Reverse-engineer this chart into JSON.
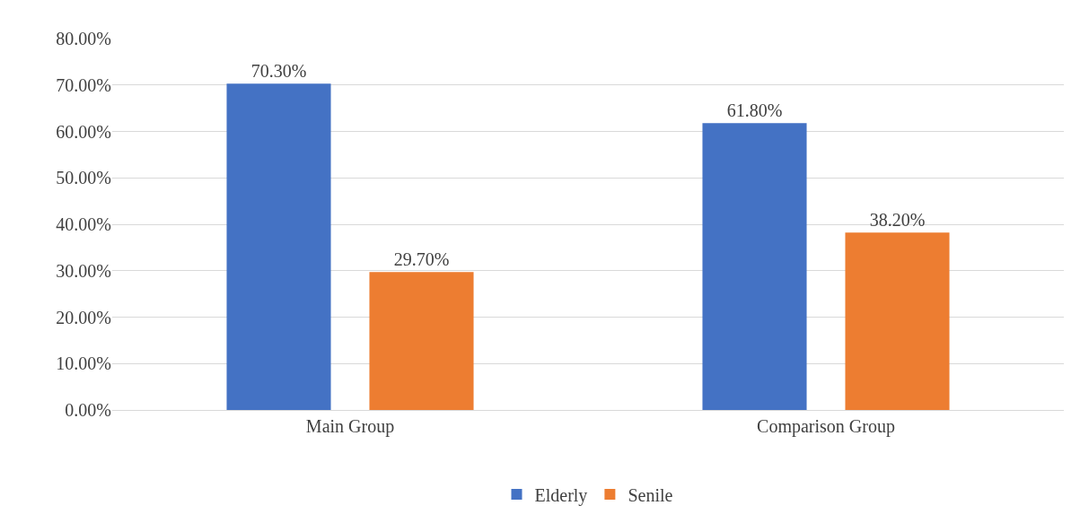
{
  "chart_data": {
    "type": "bar",
    "categories": [
      "Main Group",
      "Comparison Group"
    ],
    "series": [
      {
        "name": "Elderly",
        "color": "#4472c4",
        "values": [
          70.3,
          61.8
        ],
        "value_labels": [
          "70.30%",
          "61.80%"
        ]
      },
      {
        "name": "Senile",
        "color": "#ed7d31",
        "values": [
          29.7,
          38.2
        ],
        "value_labels": [
          "29.70%",
          "38.20%"
        ]
      }
    ],
    "ylim": [
      0,
      80
    ],
    "yticks": [
      {
        "value": 0,
        "label": "0.00%"
      },
      {
        "value": 10,
        "label": "10.00%"
      },
      {
        "value": 20,
        "label": "20.00%"
      },
      {
        "value": 30,
        "label": "30.00%"
      },
      {
        "value": 40,
        "label": "40.00%"
      },
      {
        "value": 50,
        "label": "50.00%"
      },
      {
        "value": 60,
        "label": "60.00%"
      },
      {
        "value": 70,
        "label": "70.00%"
      },
      {
        "value": 80,
        "label": "80.00%"
      }
    ],
    "grid": "y",
    "legend": "bottom"
  }
}
